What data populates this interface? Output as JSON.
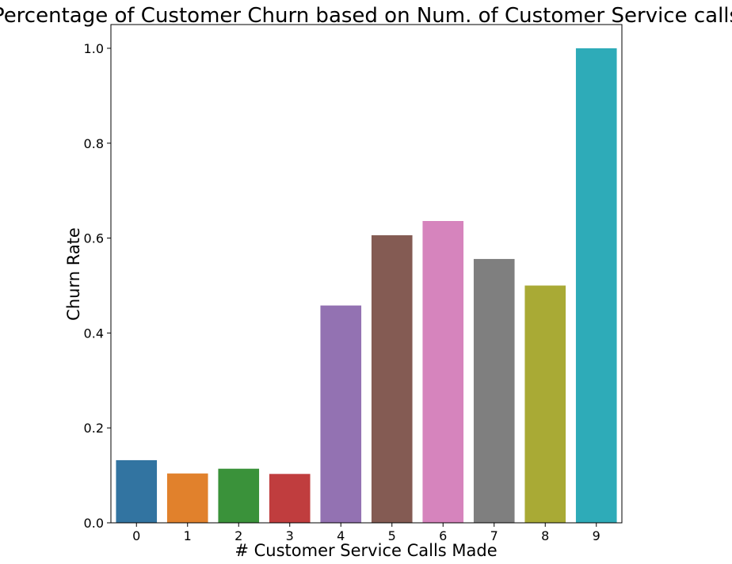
{
  "chart_data": {
    "type": "bar",
    "title": "Percentage of Customer Churn based on Num. of Customer Service calls",
    "xlabel": "# Customer Service Calls Made",
    "ylabel": "Churn Rate",
    "categories": [
      "0",
      "1",
      "2",
      "3",
      "4",
      "5",
      "6",
      "7",
      "8",
      "9"
    ],
    "values": [
      0.132,
      0.104,
      0.114,
      0.103,
      0.458,
      0.606,
      0.636,
      0.556,
      0.5,
      1.0
    ],
    "colors": [
      "#3274a1",
      "#e1812c",
      "#3a923a",
      "#c03d3e",
      "#9372b2",
      "#845b53",
      "#d684bd",
      "#7f7f7f",
      "#a9aa35",
      "#2eabb8"
    ],
    "ylim": [
      0,
      1.05
    ],
    "yticks": [
      "0.0",
      "0.2",
      "0.4",
      "0.6",
      "0.8",
      "1.0"
    ],
    "grid": false,
    "legend": "none"
  }
}
